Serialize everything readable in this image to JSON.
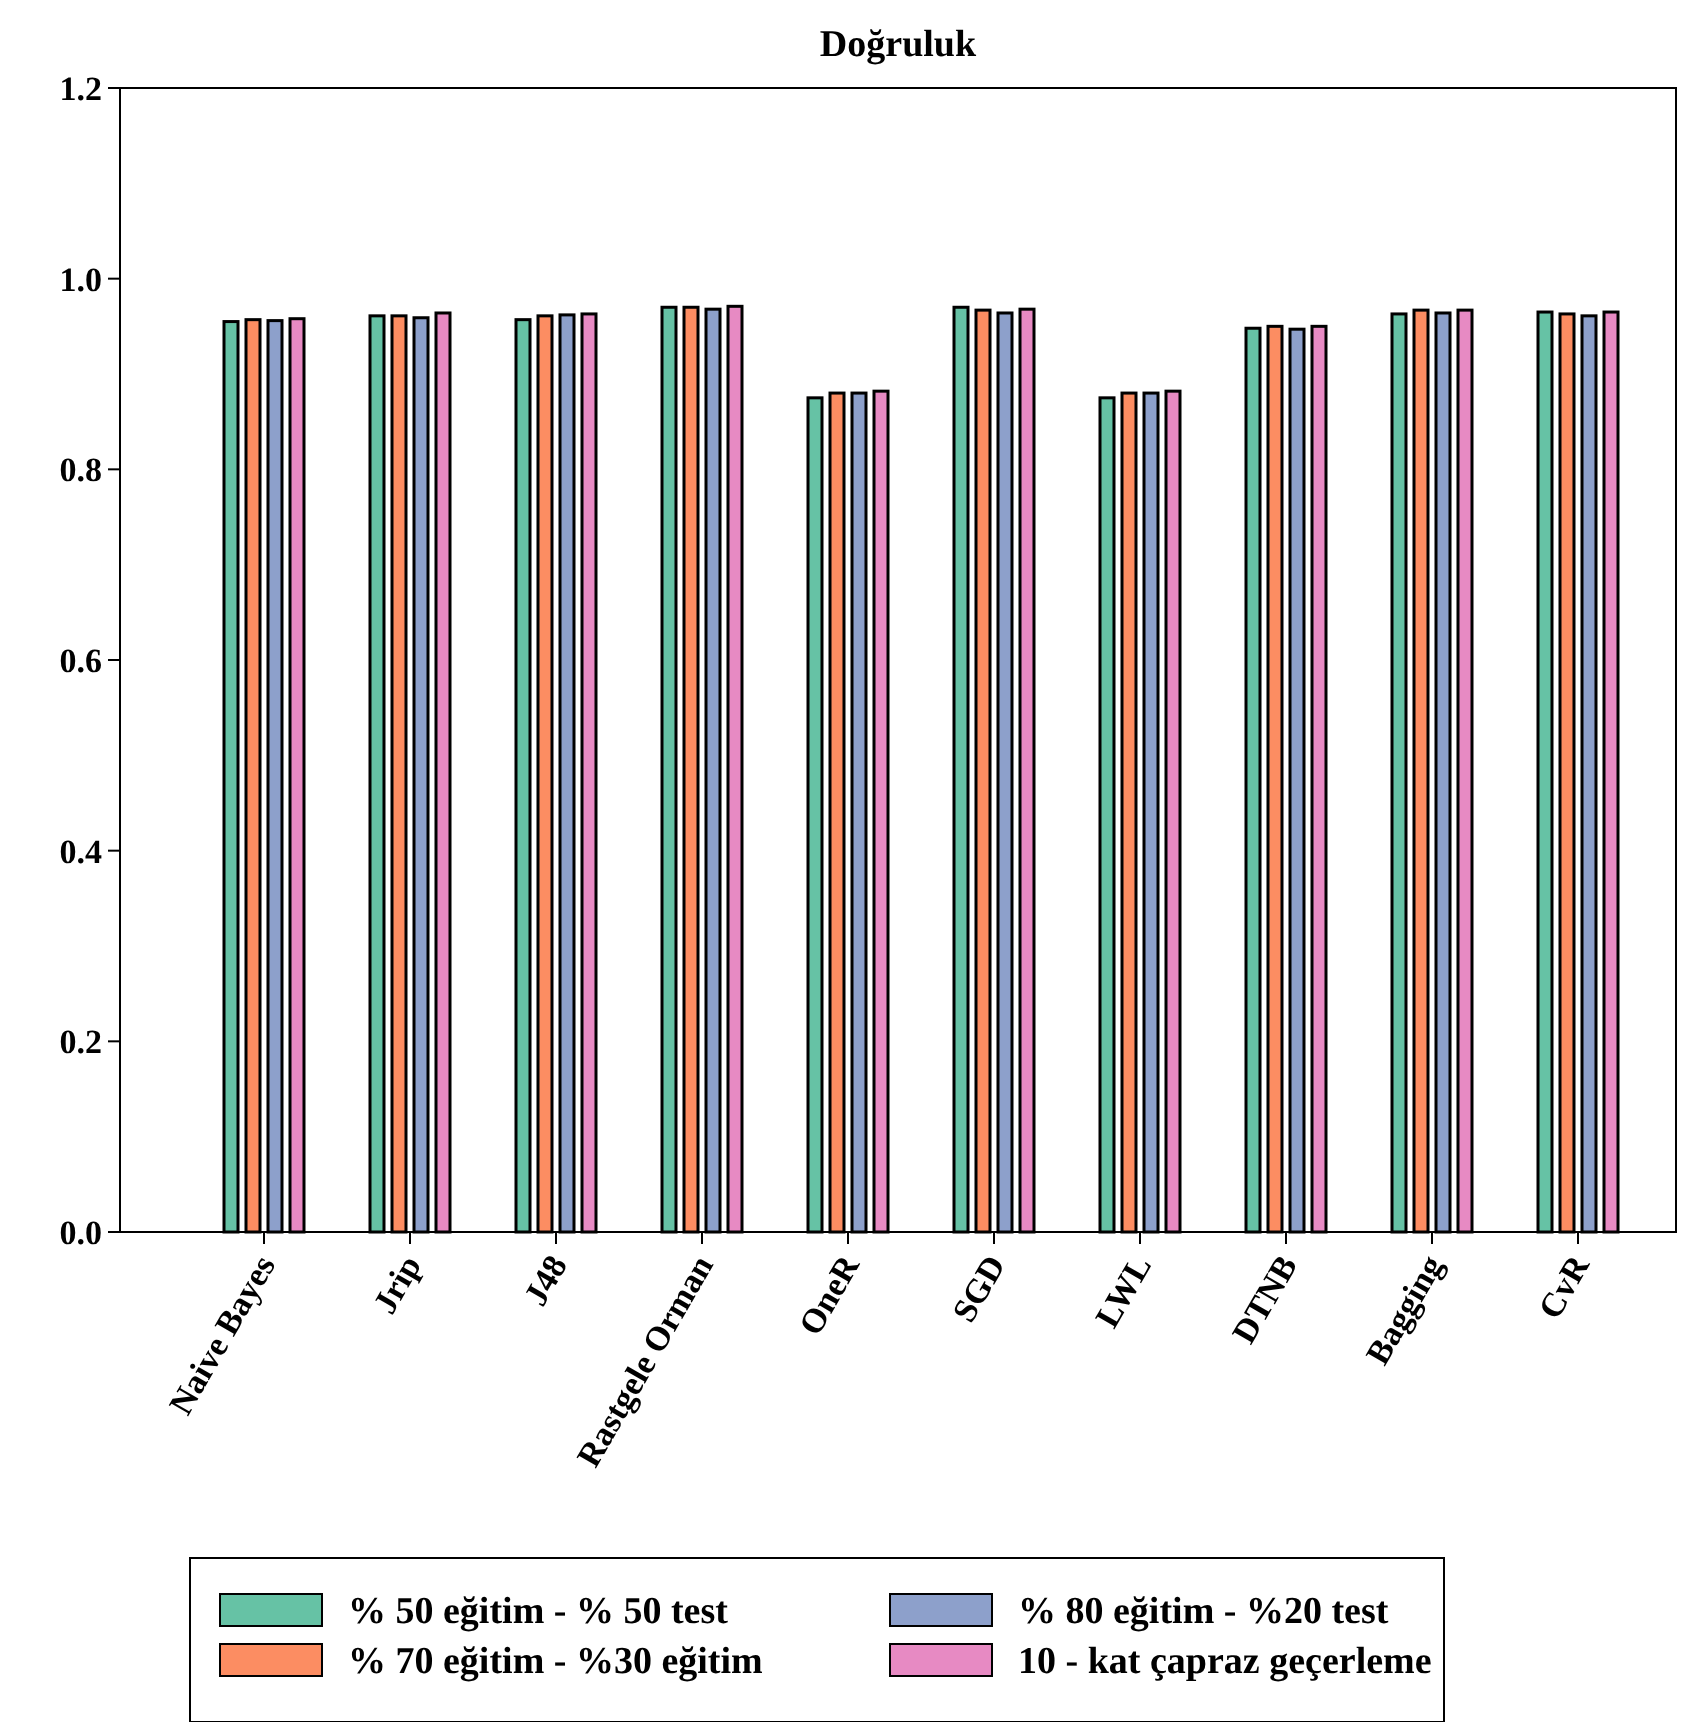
{
  "chart_data": {
    "type": "bar",
    "title": "Doğruluk",
    "categories": [
      "Naive Bayes",
      "Jrip",
      "J48",
      "Rastgele Orman",
      "OneR",
      "SGD",
      "LWL",
      "DTNB",
      "Bagging",
      "CvR"
    ],
    "series": [
      {
        "name": "% 50 eğitim - % 50 test",
        "color": "#66c2a5",
        "values": [
          0.955,
          0.961,
          0.957,
          0.97,
          0.875,
          0.97,
          0.875,
          0.948,
          0.963,
          0.965
        ]
      },
      {
        "name": "% 70 eğitim - %30 eğitim",
        "color": "#fc8d62",
        "values": [
          0.957,
          0.961,
          0.961,
          0.97,
          0.88,
          0.967,
          0.88,
          0.95,
          0.967,
          0.963
        ]
      },
      {
        "name": "% 80 eğitim - %20 test",
        "color": "#8da0cb",
        "values": [
          0.956,
          0.959,
          0.962,
          0.968,
          0.88,
          0.964,
          0.88,
          0.947,
          0.964,
          0.961
        ]
      },
      {
        "name": "10 -  kat çapraz geçerleme",
        "color": "#e78ac3",
        "values": [
          0.958,
          0.964,
          0.963,
          0.971,
          0.882,
          0.968,
          0.882,
          0.95,
          0.967,
          0.965
        ]
      }
    ],
    "ylim": [
      0,
      1.2
    ],
    "yticks": [
      {
        "value": 0,
        "label": "0.0"
      },
      {
        "value": 0.2,
        "label": "0.2"
      },
      {
        "value": 0.4,
        "label": "0.4"
      },
      {
        "value": 0.6,
        "label": "0.6"
      },
      {
        "value": 0.8,
        "label": "0.8"
      },
      {
        "value": 1,
        "label": "1.0"
      },
      {
        "value": 1.2,
        "label": "1.2"
      }
    ],
    "grid": false,
    "legend": "bottom"
  }
}
